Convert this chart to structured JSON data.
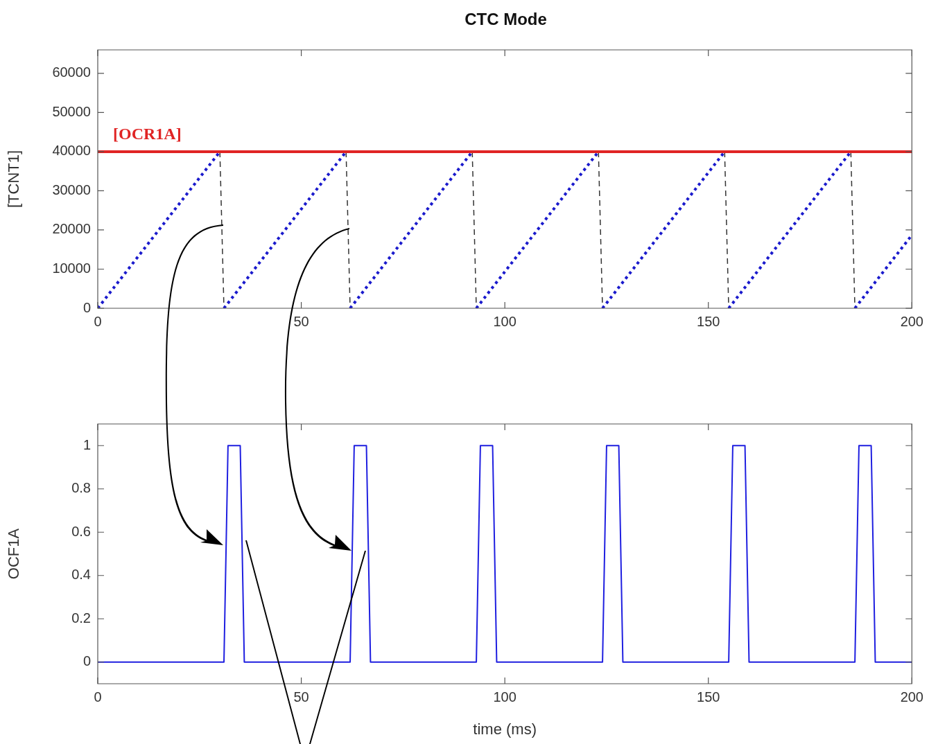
{
  "chart_data": [
    {
      "type": "line",
      "title": "CTC Mode",
      "ylabel": "[TCNT1]",
      "xlim": [
        0,
        200
      ],
      "xticks": [
        0,
        50,
        100,
        150,
        200
      ],
      "ylim": [
        0,
        66000
      ],
      "yticks": [
        0,
        10000,
        20000,
        30000,
        40000,
        50000,
        60000
      ],
      "grid": false,
      "legend": false,
      "marker": "none",
      "series": [
        {
          "color": "#1a1acc",
          "line_style": "dotted",
          "x": [
            0,
            30
          ],
          "values": [
            0,
            40000
          ]
        },
        {
          "color": "#1a1acc",
          "line_style": "dotted",
          "x": [
            31,
            61
          ],
          "values": [
            0,
            40000
          ]
        },
        {
          "color": "#1a1acc",
          "line_style": "dotted",
          "x": [
            62,
            92
          ],
          "values": [
            0,
            40000
          ]
        },
        {
          "color": "#1a1acc",
          "line_style": "dotted",
          "x": [
            93,
            123
          ],
          "values": [
            0,
            40000
          ]
        },
        {
          "color": "#1a1acc",
          "line_style": "dotted",
          "x": [
            124,
            154
          ],
          "values": [
            0,
            40000
          ]
        },
        {
          "color": "#1a1acc",
          "line_style": "dotted",
          "x": [
            155,
            185
          ],
          "values": [
            0,
            40000
          ]
        },
        {
          "color": "#1a1acc",
          "line_style": "dotted",
          "x": [
            186,
            200
          ],
          "values": [
            0,
            18700
          ]
        },
        {
          "color": "#333333",
          "line_style": "dashed",
          "x": [
            30,
            31
          ],
          "values": [
            40000,
            0
          ]
        },
        {
          "color": "#333333",
          "line_style": "dashed",
          "x": [
            61,
            62
          ],
          "values": [
            40000,
            0
          ]
        },
        {
          "color": "#333333",
          "line_style": "dashed",
          "x": [
            92,
            93
          ],
          "values": [
            40000,
            0
          ]
        },
        {
          "color": "#333333",
          "line_style": "dashed",
          "x": [
            123,
            124
          ],
          "values": [
            40000,
            0
          ]
        },
        {
          "color": "#333333",
          "line_style": "dashed",
          "x": [
            154,
            155
          ],
          "values": [
            40000,
            0
          ]
        },
        {
          "color": "#333333",
          "line_style": "dashed",
          "x": [
            185,
            186
          ],
          "values": [
            40000,
            0
          ]
        }
      ],
      "ref_lines": [
        {
          "axis": "y",
          "value": 40000,
          "label": "[OCR1A]",
          "color": "#e02424"
        }
      ]
    },
    {
      "type": "line",
      "xlabel": "time (ms)",
      "ylabel": "OCF1A",
      "xlim": [
        0,
        200
      ],
      "xticks": [
        0,
        50,
        100,
        150,
        200
      ],
      "ylim": [
        -0.1,
        1.1
      ],
      "yticks": [
        0,
        0.2,
        0.4,
        0.6,
        0.8,
        1
      ],
      "grid": false,
      "legend": false,
      "marker": "none",
      "series": [
        {
          "color": "#1f1fe0",
          "line_style": "solid",
          "x": [
            0,
            31,
            32,
            35,
            36,
            62,
            63,
            66,
            67,
            93,
            94,
            97,
            98,
            124,
            125,
            128,
            129,
            155,
            156,
            159,
            160,
            186,
            187,
            190,
            191,
            200
          ],
          "values": [
            0,
            0,
            1,
            1,
            0,
            0,
            1,
            1,
            0,
            0,
            1,
            1,
            0,
            0,
            1,
            1,
            0,
            0,
            1,
            1,
            0,
            0,
            1,
            1,
            0,
            0
          ]
        }
      ]
    }
  ]
}
